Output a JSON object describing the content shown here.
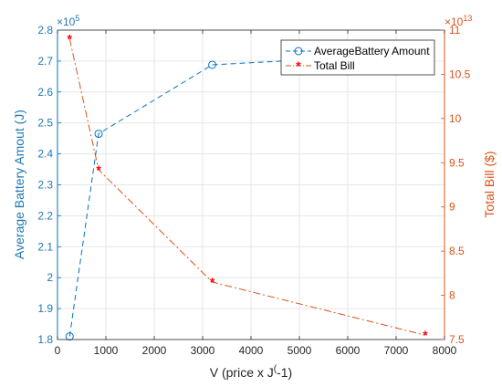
{
  "chart_data": {
    "type": "line",
    "title": "",
    "xlabel": "V (price x J",
    "xlabel_sup": "(",
    "xlabel_suffix": "-1)",
    "ylabel_left": "Average Battery Amout (J)",
    "ylabel_right": "Total Bill ($)",
    "xlim": [
      0,
      8000
    ],
    "ylim_left": [
      180000,
      280000
    ],
    "ylim_right": [
      75000000000000,
      110000000000000
    ],
    "x_ticks": [
      0,
      1000,
      2000,
      3000,
      4000,
      5000,
      6000,
      7000,
      8000
    ],
    "left_ticks": [
      1.8,
      1.9,
      2,
      2.1,
      2.2,
      2.3,
      2.4,
      2.5,
      2.6,
      2.7,
      2.8
    ],
    "right_ticks": [
      7.5,
      8,
      8.5,
      9,
      9.5,
      10,
      10.5,
      11
    ],
    "left_multiplier": "×10",
    "left_exponent": "5",
    "right_multiplier": "×10",
    "right_exponent": "13",
    "grid": true,
    "legend_position": "top-right",
    "series": [
      {
        "name": "AverageBattery Amount",
        "axis": "left",
        "color": "#0072bd",
        "marker": "circle",
        "line": "dashed",
        "x": [
          250,
          850,
          3200,
          7600
        ],
        "y": [
          181000,
          246500,
          268800,
          272500
        ]
      },
      {
        "name": "Total Bill",
        "axis": "right",
        "color": "#d95319",
        "marker": "asterisk",
        "line": "dashdot",
        "x": [
          250,
          850,
          3200,
          7600
        ],
        "y": [
          109000000000000,
          94200000000000,
          81500000000000,
          75500000000000
        ]
      }
    ]
  }
}
